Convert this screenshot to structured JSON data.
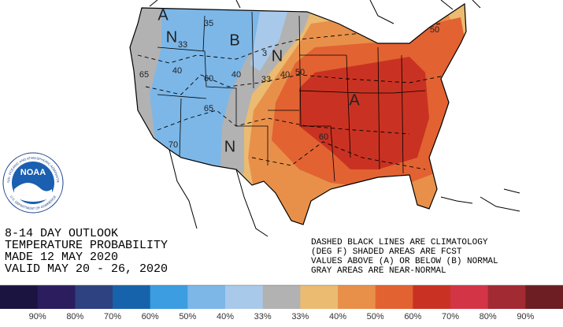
{
  "logo": {
    "text": "NOAA",
    "ring_top": "NATIONAL OCEANIC AND ATMOSPHERIC ADMINISTRATION",
    "ring_bottom": "U.S. DEPARTMENT OF COMMERCE"
  },
  "header": {
    "lines": [
      "8-14 DAY OUTLOOK",
      "TEMPERATURE PROBABILITY",
      "MADE  12 MAY 2020",
      "VALID  MAY 20 - 26, 2020"
    ]
  },
  "notes": {
    "lines": [
      "DASHED BLACK LINES ARE CLIMATOLOGY",
      "(DEG F) SHADED AREAS ARE FCST",
      "VALUES ABOVE (A) OR BELOW (B) NORMAL",
      "GRAY AREAS ARE NEAR-NORMAL"
    ]
  },
  "map": {
    "labels": [
      "A",
      "N",
      "33",
      "35",
      "B",
      "3",
      "N",
      "40",
      "40",
      "33",
      "40",
      "50",
      "65",
      "60",
      "65",
      "70",
      "N",
      "60",
      "A",
      "50"
    ]
  },
  "legend": {
    "colors": [
      "#1c1440",
      "#2b1d5e",
      "#2e4180",
      "#1663ab",
      "#3c9de0",
      "#7cb7e8",
      "#a9c9ea",
      "#b2b2b2",
      "#ebbb72",
      "#e8904a",
      "#e26232",
      "#c93222",
      "#d33546",
      "#a22a32",
      "#6c1e22"
    ],
    "labels": [
      "90%",
      "80%",
      "70%",
      "60%",
      "50%",
      "40%",
      "33%",
      "33%",
      "40%",
      "50%",
      "60%",
      "70%",
      "80%",
      "90%"
    ]
  }
}
